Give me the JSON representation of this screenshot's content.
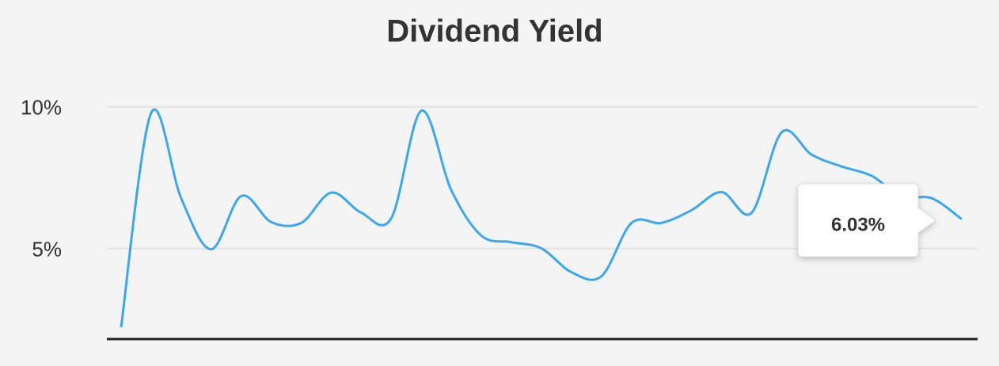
{
  "chart_data": {
    "type": "line",
    "title": "Dividend Yield",
    "categories": [
      null,
      null,
      null,
      null,
      null,
      null,
      null,
      null,
      null,
      null,
      null,
      null,
      null,
      null,
      null,
      null,
      null,
      null,
      null,
      null,
      null,
      null,
      null,
      null,
      null,
      null,
      null,
      null,
      null
    ],
    "series": [
      {
        "name": "Dividend Yield",
        "color": "#3aa8ee",
        "values": [
          2.22,
          9.78,
          6.77,
          4.97,
          6.85,
          5.93,
          5.9,
          6.97,
          6.26,
          6.07,
          9.86,
          7.05,
          5.45,
          5.22,
          5.0,
          4.16,
          4.02,
          5.9,
          5.9,
          6.35,
          6.99,
          6.26,
          9.1,
          8.31,
          7.89,
          7.56,
          6.83,
          6.77,
          6.03
        ]
      }
    ],
    "ylim": [
      1.8,
      11
    ],
    "yticks": [
      {
        "value": 5,
        "label": "5%"
      },
      {
        "value": 10,
        "label": "10%"
      }
    ],
    "grid": true,
    "tooltip": {
      "label": "6.03%"
    }
  }
}
